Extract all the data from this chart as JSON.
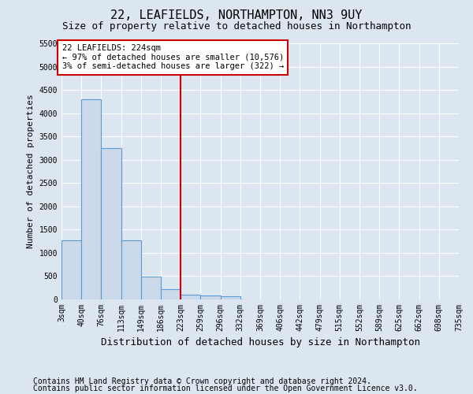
{
  "title": "22, LEAFIELDS, NORTHAMPTON, NN3 9UY",
  "subtitle": "Size of property relative to detached houses in Northampton",
  "xlabel": "Distribution of detached houses by size in Northampton",
  "ylabel": "Number of detached properties",
  "footer1": "Contains HM Land Registry data © Crown copyright and database right 2024.",
  "footer2": "Contains public sector information licensed under the Open Government Licence v3.0.",
  "bin_edges": [
    3,
    40,
    76,
    113,
    149,
    186,
    223,
    259,
    296,
    332,
    369,
    406,
    442,
    479,
    515,
    552,
    589,
    625,
    662,
    698,
    735
  ],
  "bar_heights": [
    1270,
    4300,
    3250,
    1270,
    490,
    220,
    100,
    80,
    60,
    0,
    0,
    0,
    0,
    0,
    0,
    0,
    0,
    0,
    0,
    0
  ],
  "bar_color": "#ccd9ea",
  "bar_edgecolor": "#5b9bd5",
  "vline_x": 223,
  "vline_color": "#cc0000",
  "annot_line1": "22 LEAFIELDS: 224sqm",
  "annot_line2": "← 97% of detached houses are smaller (10,576)",
  "annot_line3": "3% of semi-detached houses are larger (322) →",
  "annotation_box_edgecolor": "#cc0000",
  "annotation_box_facecolor": "#ffffff",
  "ylim": [
    0,
    5500
  ],
  "yticks": [
    0,
    500,
    1000,
    1500,
    2000,
    2500,
    3000,
    3500,
    4000,
    4500,
    5000,
    5500
  ],
  "background_color": "#dce6f1",
  "plot_bg_color": "#dce6f1",
  "grid_color": "#ffffff",
  "title_fontsize": 11,
  "subtitle_fontsize": 9,
  "xlabel_fontsize": 9,
  "ylabel_fontsize": 8,
  "tick_fontsize": 7,
  "annot_fontsize": 7.5,
  "footer_fontsize": 7
}
